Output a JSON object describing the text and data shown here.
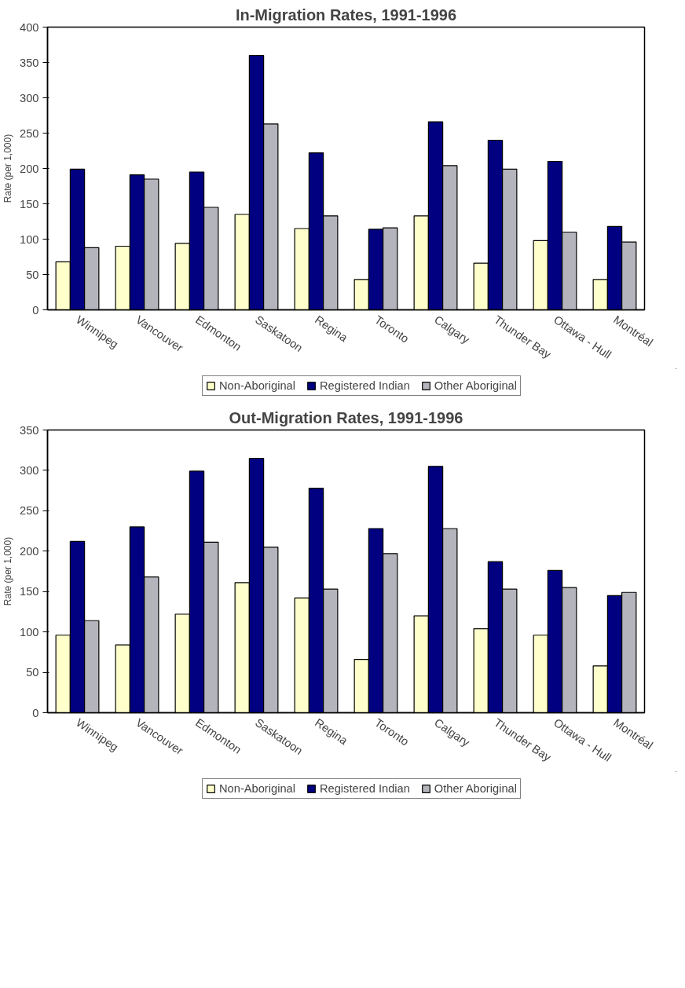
{
  "chart_data": [
    {
      "type": "bar",
      "title": "In-Migration Rates, 1991-1996",
      "ylabel": "Rate (per 1,000)",
      "categories": [
        "Winnipeg",
        "Vancouver",
        "Edmonton",
        "Saskatoon",
        "Regina",
        "Toronto",
        "Calgary",
        "Thunder Bay",
        "Ottawa - Hull",
        "Montréal"
      ],
      "series": [
        {
          "name": "Non-Aboriginal",
          "color": "#ffffcc",
          "values": [
            68,
            90,
            94,
            135,
            115,
            43,
            133,
            66,
            98,
            43
          ]
        },
        {
          "name": "Registered Indian",
          "color": "#000080",
          "values": [
            199,
            191,
            195,
            360,
            222,
            114,
            266,
            240,
            210,
            118
          ]
        },
        {
          "name": "Other Aboriginal",
          "color": "#b4b4bc",
          "values": [
            88,
            185,
            145,
            263,
            133,
            116,
            204,
            199,
            110,
            96
          ]
        }
      ],
      "ylim": [
        0,
        400
      ],
      "yticks": [
        0,
        50,
        100,
        150,
        200,
        250,
        300,
        350,
        400
      ],
      "grid": false,
      "legend": "bottom"
    },
    {
      "type": "bar",
      "title": "Out-Migration Rates, 1991-1996",
      "ylabel": "Rate (per 1,000)",
      "categories": [
        "Winnipeg",
        "Vancouver",
        "Edmonton",
        "Saskatoon",
        "Regina",
        "Toronto",
        "Calgary",
        "Thunder Bay",
        "Ottawa - Hull",
        "Montréal"
      ],
      "series": [
        {
          "name": "Non-Aboriginal",
          "color": "#ffffcc",
          "values": [
            96,
            84,
            122,
            161,
            142,
            66,
            120,
            104,
            96,
            58
          ]
        },
        {
          "name": "Registered Indian",
          "color": "#000080",
          "values": [
            212,
            230,
            299,
            315,
            278,
            228,
            305,
            187,
            176,
            145
          ]
        },
        {
          "name": "Other Aboriginal",
          "color": "#b4b4bc",
          "values": [
            114,
            168,
            211,
            205,
            153,
            197,
            228,
            153,
            155,
            149
          ]
        }
      ],
      "ylim": [
        0,
        350
      ],
      "yticks": [
        0,
        50,
        100,
        150,
        200,
        250,
        300,
        350
      ],
      "grid": false,
      "legend": "bottom"
    }
  ]
}
